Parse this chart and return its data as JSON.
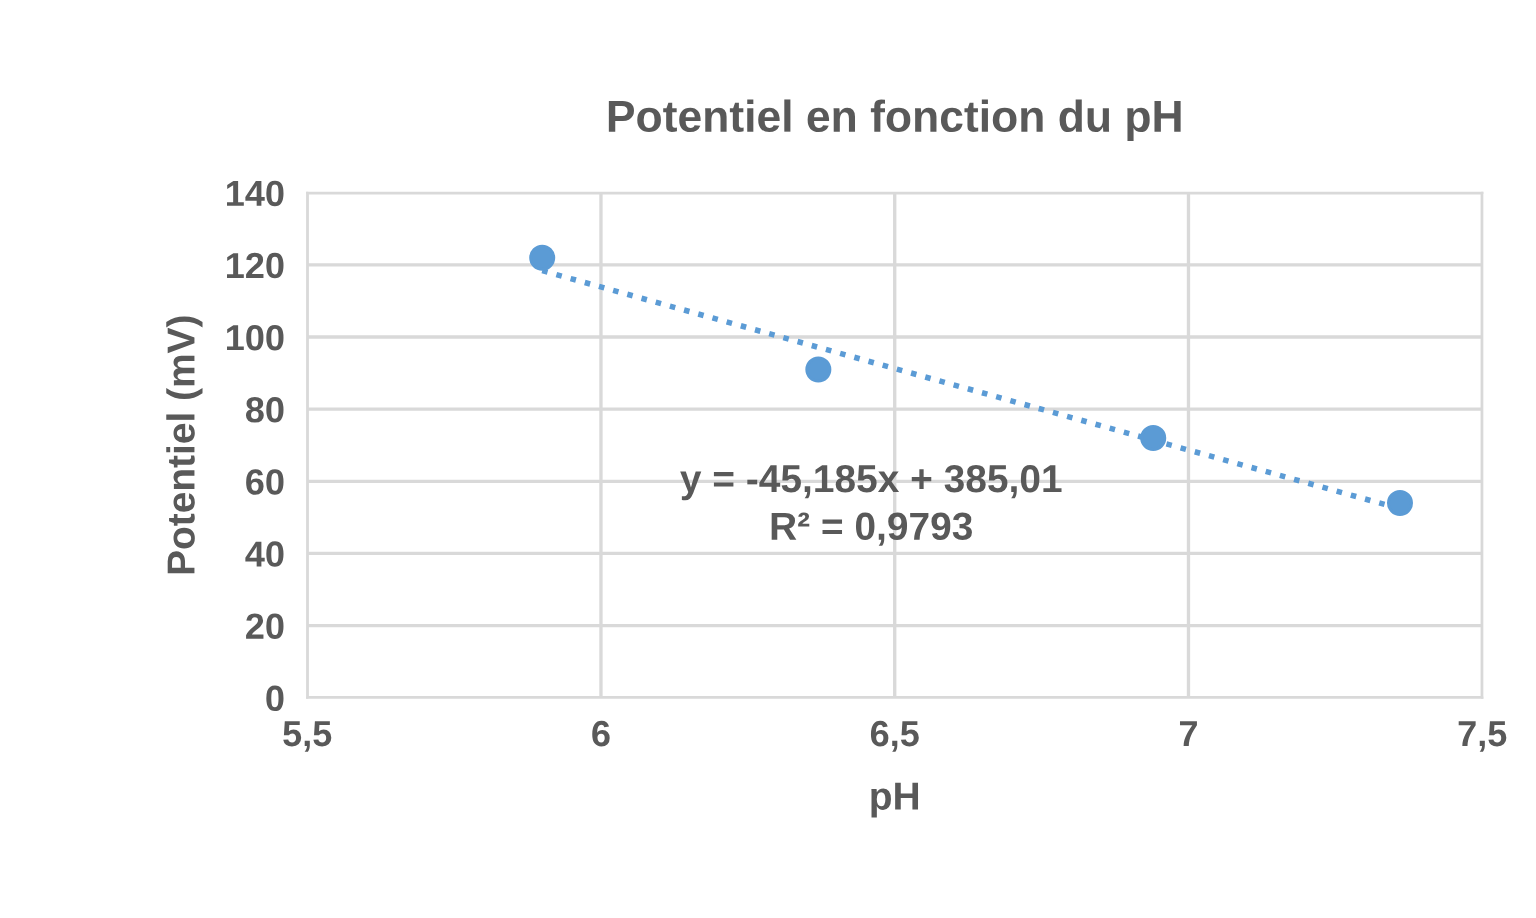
{
  "chart_data": {
    "type": "scatter",
    "title": "Potentiel en fonction du pH",
    "xlabel": "pH",
    "ylabel": "Potentiel (mV)",
    "series": [
      {
        "color": "#5b9bd5",
        "marker": "circle",
        "x": [
          5.9,
          6.37,
          6.94,
          7.36
        ],
        "values": [
          122,
          91,
          72,
          54
        ]
      },
      {
        "type": "line",
        "color": "#5b9bd5",
        "marker": "none",
        "line_style": "dotted",
        "x": [
          5.9,
          7.36
        ],
        "values": [
          118.4,
          52.4
        ]
      }
    ],
    "annotations": [
      "y = -45,185x + 385,01\nR² = 0,9793"
    ],
    "xlim": [
      5.5,
      7.5
    ],
    "ylim": [
      0,
      140
    ],
    "xticks": [
      {
        "value": 5.5,
        "label": "5,5"
      },
      6,
      {
        "value": 6.5,
        "label": "6,5"
      },
      7,
      {
        "value": 7.5,
        "label": "7,5"
      }
    ],
    "yticks": [
      0,
      20,
      40,
      60,
      80,
      100,
      120,
      140
    ],
    "grid": true
  }
}
